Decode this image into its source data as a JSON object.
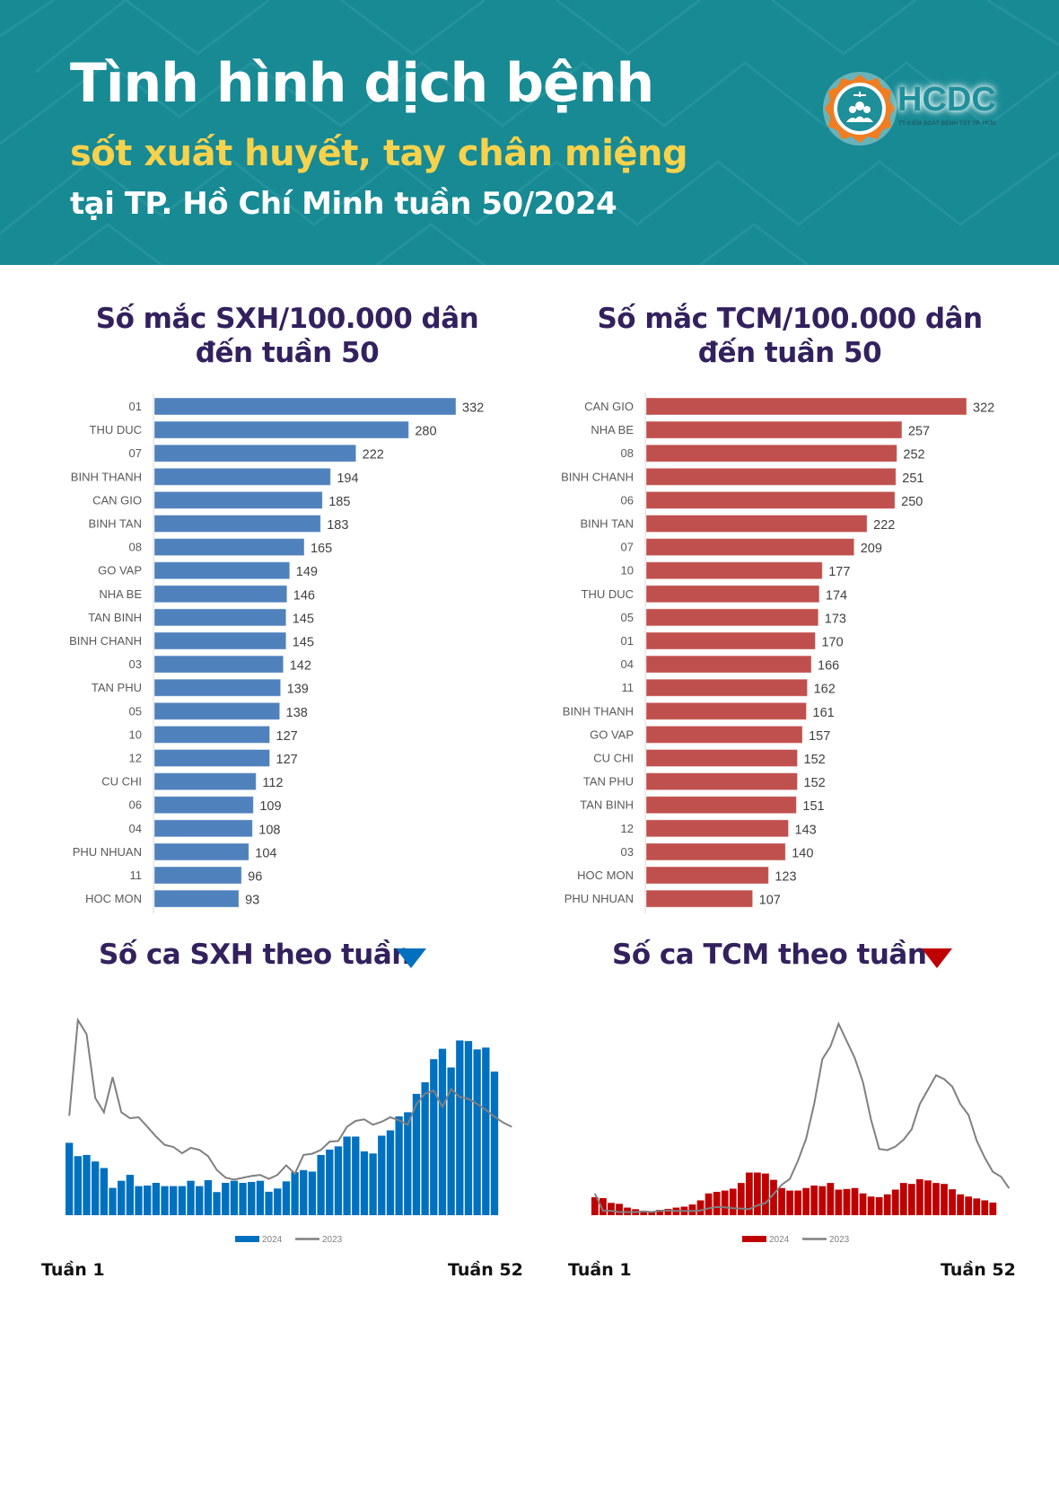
{
  "header": {
    "title_line1": "Tình hình dịch bệnh",
    "title_line2": "sốt xuất huyết, tay chân miệng",
    "title_line3": "tại TP. Hồ Chí Minh tuần 50/2024",
    "logo_text": "HCDC",
    "logo_subtext": "TT KIỂM SOÁT BỆNH TẬT TP. HCM",
    "colors": {
      "background": "#178a94",
      "highlight": "#f7d24c",
      "logo_orange": "#ef7d22"
    }
  },
  "sections": {
    "sxh_rate_title_1": "Số mắc SXH/100.000 dân",
    "sxh_rate_title_2": "đến tuần 50",
    "tcm_rate_title_1": "Số mắc TCM/100.000 dân",
    "tcm_rate_title_2": "đến tuần 50",
    "sxh_weekly_title": "Số ca SXH theo tuần",
    "tcm_weekly_title": "Số ca TCM theo tuần",
    "sxh_trend_icon": "down-triangle",
    "tcm_trend_icon": "down-triangle",
    "week_start": "Tuần 1",
    "week_end": "Tuần 52"
  },
  "chart_data": [
    {
      "id": "sxh_rate",
      "type": "bar",
      "orientation": "horizontal",
      "title": "Số mắc SXH/100.000 dân đến tuần 50",
      "color": "#4f81bd",
      "categories": [
        "01",
        "THU DUC",
        "07",
        "BINH THANH",
        "CAN GIO",
        "BINH TAN",
        "08",
        "GO VAP",
        "NHA BE",
        "TAN BINH",
        "BINH CHANH",
        "03",
        "TAN PHU",
        "05",
        "10",
        "12",
        "CU CHI",
        "06",
        "04",
        "PHU NHUAN",
        "11",
        "HOC MON"
      ],
      "values": [
        332,
        280,
        222,
        194,
        185,
        183,
        165,
        149,
        146,
        145,
        145,
        142,
        139,
        138,
        127,
        127,
        112,
        109,
        108,
        104,
        96,
        93
      ],
      "xlim": [
        0,
        332
      ]
    },
    {
      "id": "tcm_rate",
      "type": "bar",
      "orientation": "horizontal",
      "title": "Số mắc TCM/100.000 dân đến tuần 50",
      "color": "#c0504d",
      "categories": [
        "CAN GIO",
        "NHA BE",
        "08",
        "BINH CHANH",
        "06",
        "BINH TAN",
        "07",
        "10",
        "THU DUC",
        "05",
        "01",
        "04",
        "11",
        "BINH THANH",
        "GO VAP",
        "CU CHI",
        "TAN PHU",
        "TAN BINH",
        "12",
        "03",
        "HOC MON",
        "PHU NHUAN"
      ],
      "values": [
        322,
        257,
        252,
        251,
        250,
        222,
        209,
        177,
        174,
        173,
        170,
        166,
        162,
        161,
        157,
        152,
        152,
        151,
        143,
        140,
        123,
        107
      ],
      "xlim": [
        0,
        322
      ]
    },
    {
      "id": "sxh_weekly",
      "type": "bar",
      "title": "Số ca SXH theo tuần",
      "xlabel_start": "Tuần 1",
      "xlabel_end": "Tuần 52",
      "legend": [
        "2024",
        "2023"
      ],
      "legend_position": "bottom",
      "units": "relative (arbitrary, no axis shown)",
      "ylim": [
        0,
        660
      ],
      "series": [
        {
          "name": "2024",
          "kind": "bar",
          "color": "#0070c0",
          "values": [
            244,
            199,
            203,
            181,
            159,
            92,
            116,
            136,
            98,
            100,
            109,
            98,
            98,
            98,
            116,
            98,
            118,
            78,
            109,
            116,
            109,
            112,
            116,
            79,
            90,
            114,
            145,
            152,
            147,
            203,
            221,
            232,
            265,
            265,
            215,
            208,
            268,
            286,
            333,
            347,
            409,
            448,
            526,
            561,
            498,
            589,
            587,
            559,
            565,
            484
          ]
        },
        {
          "name": "2023",
          "kind": "line",
          "color": "#808080",
          "values": [
            335,
            658,
            610,
            395,
            347,
            465,
            347,
            327,
            330,
            298,
            265,
            237,
            230,
            209,
            227,
            220,
            199,
            153,
            127,
            120,
            126,
            132,
            136,
            122,
            136,
            168,
            140,
            203,
            207,
            220,
            248,
            250,
            298,
            318,
            323,
            305,
            315,
            330,
            320,
            305,
            375,
            410,
            420,
            365,
            425,
            398,
            392,
            375,
            355,
            332,
            312,
            298
          ]
        }
      ]
    },
    {
      "id": "tcm_weekly",
      "type": "bar",
      "title": "Số ca TCM theo tuần",
      "xlabel_start": "Tuần 1",
      "xlabel_end": "Tuần 52",
      "legend": [
        "2024",
        "2023"
      ],
      "legend_position": "bottom",
      "units": "relative (arbitrary, no axis shown)",
      "ylim": [
        0,
        620
      ],
      "series": [
        {
          "name": "2024",
          "kind": "bar",
          "color": "#c00000",
          "values": [
            57,
            54,
            39,
            36,
            24,
            19,
            14,
            10,
            17,
            20,
            24,
            27,
            34,
            47,
            69,
            74,
            78,
            84,
            102,
            135,
            135,
            132,
            112,
            86,
            78,
            78,
            86,
            94,
            92,
            102,
            81,
            83,
            86,
            69,
            59,
            57,
            66,
            81,
            102,
            99,
            114,
            110,
            102,
            99,
            82,
            66,
            59,
            53,
            47,
            40
          ]
        },
        {
          "name": "2023",
          "kind": "line",
          "color": "#808080",
          "values": [
            68,
            14,
            14,
            10,
            10,
            10,
            12,
            10,
            14,
            15,
            13,
            13,
            13,
            15,
            22,
            26,
            25,
            22,
            21,
            19,
            31,
            38,
            67,
            96,
            115,
            172,
            242,
            352,
            494,
            534,
            606,
            552,
            497,
            422,
            302,
            210,
            206,
            217,
            239,
            272,
            352,
            397,
            443,
            431,
            407,
            352,
            317,
            237,
            182,
            137,
            122,
            85
          ]
        }
      ]
    }
  ]
}
